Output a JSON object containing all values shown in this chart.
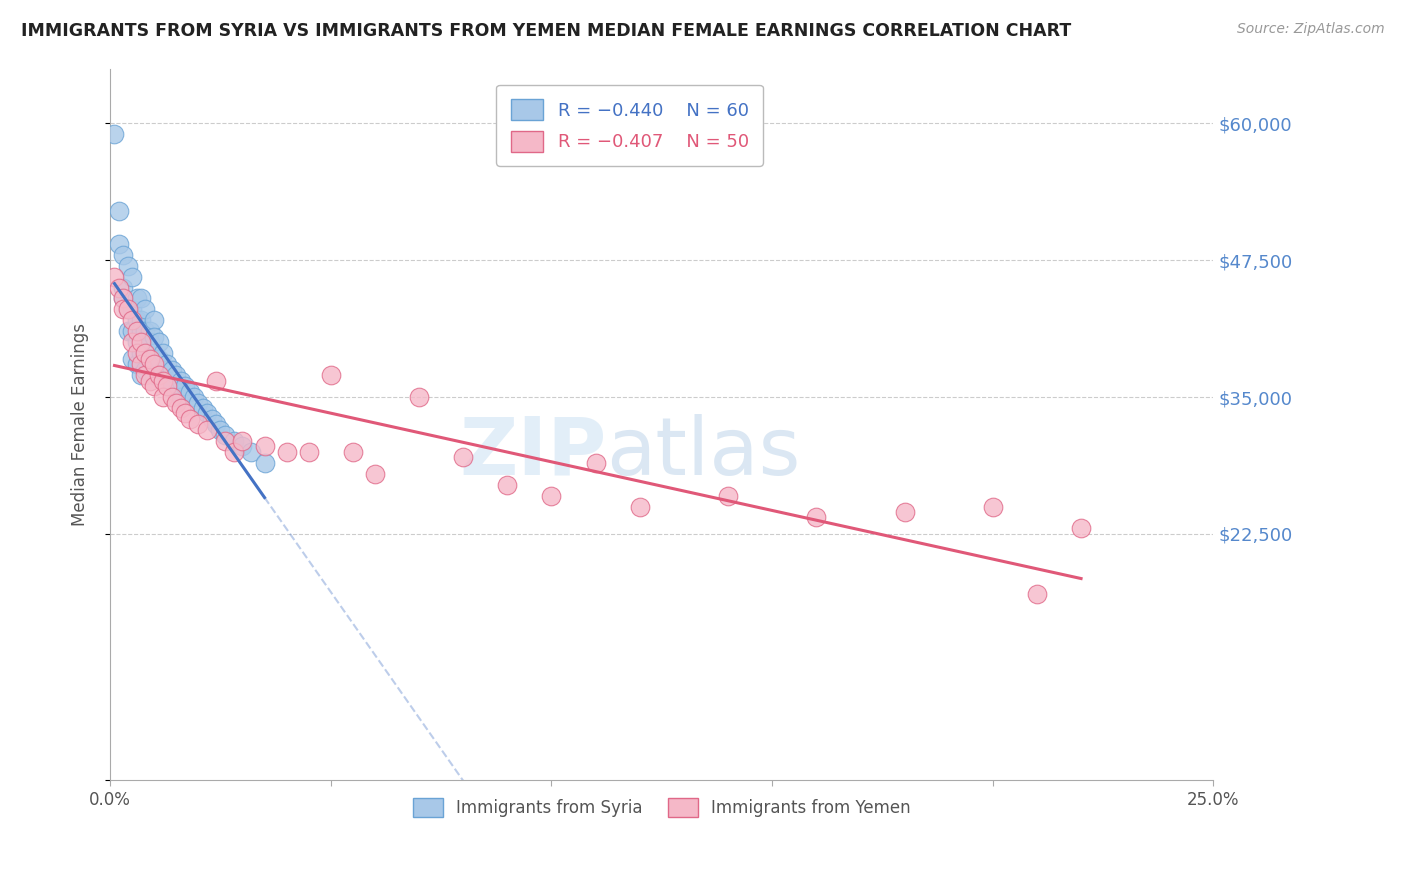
{
  "title": "IMMIGRANTS FROM SYRIA VS IMMIGRANTS FROM YEMEN MEDIAN FEMALE EARNINGS CORRELATION CHART",
  "source": "Source: ZipAtlas.com",
  "ylabel": "Median Female Earnings",
  "ymin": 0,
  "ymax": 65000,
  "xmin": 0.0,
  "xmax": 0.25,
  "syria_color": "#a8c8e8",
  "syria_edge": "#6aa3d5",
  "yemen_color": "#f5b8c8",
  "yemen_edge": "#e06888",
  "trend_syria_color": "#4472c4",
  "trend_yemen_color": "#e05878",
  "legend_syria_R": "R = −0.440",
  "legend_syria_N": "N = 60",
  "legend_yemen_R": "R = −0.407",
  "legend_yemen_N": "N = 50",
  "legend_label_syria": "Immigrants from Syria",
  "legend_label_yemen": "Immigrants from Yemen",
  "ytick_positions": [
    0,
    22500,
    35000,
    47500,
    60000
  ],
  "ytick_labels": [
    "",
    "$22,500",
    "$35,000",
    "$47,500",
    "$60,000"
  ],
  "xtick_positions": [
    0.0,
    0.05,
    0.1,
    0.15,
    0.2,
    0.25
  ],
  "xtick_labels": [
    "0.0%",
    "",
    "",
    "",
    "",
    "25.0%"
  ],
  "syria_x": [
    0.001,
    0.002,
    0.002,
    0.003,
    0.003,
    0.003,
    0.004,
    0.004,
    0.004,
    0.005,
    0.005,
    0.005,
    0.005,
    0.006,
    0.006,
    0.006,
    0.006,
    0.007,
    0.007,
    0.007,
    0.007,
    0.007,
    0.008,
    0.008,
    0.008,
    0.008,
    0.009,
    0.009,
    0.009,
    0.01,
    0.01,
    0.01,
    0.01,
    0.011,
    0.011,
    0.011,
    0.012,
    0.012,
    0.013,
    0.013,
    0.014,
    0.014,
    0.015,
    0.015,
    0.016,
    0.016,
    0.017,
    0.018,
    0.019,
    0.02,
    0.021,
    0.022,
    0.023,
    0.024,
    0.025,
    0.026,
    0.028,
    0.03,
    0.032,
    0.035
  ],
  "syria_y": [
    59000,
    52000,
    49000,
    48000,
    45000,
    44000,
    47000,
    43000,
    41000,
    46000,
    43000,
    41000,
    38500,
    44000,
    42000,
    40000,
    38000,
    44000,
    42000,
    41000,
    39000,
    37000,
    43000,
    41000,
    39000,
    37500,
    41000,
    40000,
    38500,
    42000,
    40500,
    39000,
    37000,
    40000,
    38500,
    37000,
    39000,
    37500,
    38000,
    36500,
    37500,
    36000,
    37000,
    35500,
    36500,
    35000,
    36000,
    35500,
    35000,
    34500,
    34000,
    33500,
    33000,
    32500,
    32000,
    31500,
    31000,
    30500,
    30000,
    29000
  ],
  "yemen_x": [
    0.001,
    0.002,
    0.003,
    0.003,
    0.004,
    0.005,
    0.005,
    0.006,
    0.006,
    0.007,
    0.007,
    0.008,
    0.008,
    0.009,
    0.009,
    0.01,
    0.01,
    0.011,
    0.012,
    0.012,
    0.013,
    0.014,
    0.015,
    0.016,
    0.017,
    0.018,
    0.02,
    0.022,
    0.024,
    0.026,
    0.028,
    0.03,
    0.035,
    0.04,
    0.045,
    0.05,
    0.055,
    0.06,
    0.07,
    0.08,
    0.09,
    0.1,
    0.11,
    0.12,
    0.14,
    0.16,
    0.18,
    0.2,
    0.21,
    0.22
  ],
  "yemen_y": [
    46000,
    45000,
    44000,
    43000,
    43000,
    42000,
    40000,
    41000,
    39000,
    40000,
    38000,
    39000,
    37000,
    38500,
    36500,
    38000,
    36000,
    37000,
    36500,
    35000,
    36000,
    35000,
    34500,
    34000,
    33500,
    33000,
    32500,
    32000,
    36500,
    31000,
    30000,
    31000,
    30500,
    30000,
    30000,
    37000,
    30000,
    28000,
    35000,
    29500,
    27000,
    26000,
    29000,
    25000,
    26000,
    24000,
    24500,
    25000,
    17000,
    23000
  ]
}
